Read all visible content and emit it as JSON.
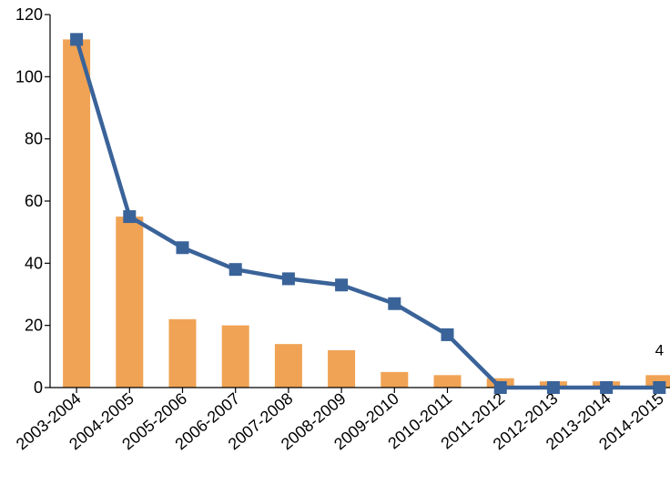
{
  "chart_data": {
    "type": "bar",
    "categories": [
      "2003-2004",
      "2004-2005",
      "2005-2006",
      "2006-2007",
      "2007-2008",
      "2008-2009",
      "2009-2010",
      "2010-2011",
      "2011-2012",
      "2012-2013",
      "2013-2014",
      "2014-2015"
    ],
    "series": [
      {
        "type": "bar",
        "color": "#F0A354",
        "values": [
          112,
          55,
          22,
          20,
          14,
          12,
          5,
          4,
          3,
          2,
          2,
          4
        ]
      },
      {
        "type": "line",
        "color": "#3A6399",
        "marker": "square",
        "values": [
          112,
          55,
          45,
          38,
          35,
          33,
          27,
          17,
          0,
          0,
          0,
          0
        ]
      }
    ],
    "data_labels": [
      {
        "category_index": 11,
        "text": "4"
      }
    ],
    "y_ticks": [
      "0",
      "20",
      "40",
      "60",
      "80",
      "100",
      "120"
    ],
    "ylim": [
      0,
      120
    ],
    "grid": false,
    "legend": "none"
  }
}
